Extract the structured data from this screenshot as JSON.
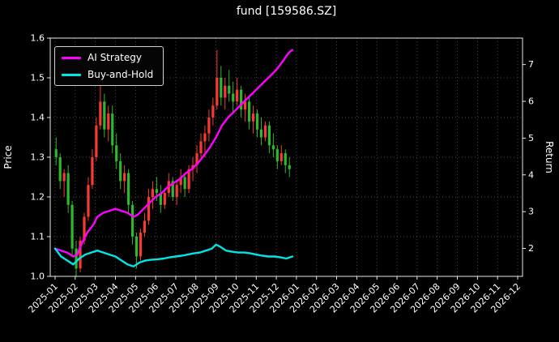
{
  "title": "fund [159586.SZ]",
  "chart_data": {
    "type": "candlestick+line",
    "title": "fund [159586.SZ]",
    "background": "#000000",
    "text_color": "#ffffff",
    "grid": {
      "on": true,
      "color": "#888888",
      "style": "dotted"
    },
    "x_axis": {
      "tick_labels": [
        "2025-01",
        "2025-02",
        "2025-03",
        "2025-04",
        "2025-05",
        "2025-06",
        "2025-07",
        "2025-08",
        "2025-09",
        "2025-10",
        "2025-11",
        "2025-12",
        "2026-01",
        "2026-02",
        "2026-03",
        "2026-04",
        "2026-05",
        "2026-06",
        "2026-07",
        "2026-08",
        "2026-09",
        "2026-10",
        "2026-11",
        "2026-12"
      ],
      "range_months": 24,
      "data_span_months": 12
    },
    "y_left": {
      "label": "Price",
      "ticks": [
        1.0,
        1.1,
        1.2,
        1.3,
        1.4,
        1.5,
        1.6
      ],
      "range": [
        1.0,
        1.6
      ]
    },
    "y_right": {
      "label": "Return",
      "ticks": [
        2,
        3,
        4,
        5,
        6,
        7
      ],
      "range": [
        1.24,
        7.72
      ]
    },
    "legend": {
      "position": "upper-left"
    },
    "candles": {
      "up_color": "#f93a34",
      "down_color": "#2eb82e",
      "ohlc": [
        [
          0.05,
          1.32,
          1.35,
          1.28,
          1.3
        ],
        [
          0.25,
          1.3,
          1.31,
          1.22,
          1.24
        ],
        [
          0.45,
          1.24,
          1.27,
          1.2,
          1.26
        ],
        [
          0.65,
          1.26,
          1.28,
          1.16,
          1.18
        ],
        [
          0.85,
          1.18,
          1.19,
          1.05,
          1.07
        ],
        [
          1.05,
          1.07,
          1.09,
          1.0,
          1.02
        ],
        [
          1.25,
          1.02,
          1.1,
          1.01,
          1.09
        ],
        [
          1.45,
          1.09,
          1.16,
          1.08,
          1.15
        ],
        [
          1.65,
          1.15,
          1.25,
          1.14,
          1.23
        ],
        [
          1.85,
          1.23,
          1.32,
          1.22,
          1.3
        ],
        [
          2.05,
          1.3,
          1.4,
          1.29,
          1.38
        ],
        [
          2.25,
          1.38,
          1.48,
          1.37,
          1.44
        ],
        [
          2.45,
          1.44,
          1.46,
          1.35,
          1.37
        ],
        [
          2.65,
          1.37,
          1.43,
          1.34,
          1.41
        ],
        [
          2.85,
          1.41,
          1.43,
          1.31,
          1.33
        ],
        [
          3.05,
          1.33,
          1.36,
          1.27,
          1.29
        ],
        [
          3.25,
          1.29,
          1.31,
          1.22,
          1.24
        ],
        [
          3.45,
          1.24,
          1.28,
          1.21,
          1.26
        ],
        [
          3.65,
          1.26,
          1.27,
          1.16,
          1.18
        ],
        [
          3.85,
          1.18,
          1.19,
          1.08,
          1.1
        ],
        [
          4.05,
          1.1,
          1.11,
          1.02,
          1.05
        ],
        [
          4.25,
          1.05,
          1.12,
          1.04,
          1.11
        ],
        [
          4.45,
          1.11,
          1.16,
          1.1,
          1.14
        ],
        [
          4.65,
          1.14,
          1.22,
          1.13,
          1.2
        ],
        [
          4.85,
          1.2,
          1.24,
          1.17,
          1.22
        ],
        [
          5.05,
          1.22,
          1.25,
          1.19,
          1.21
        ],
        [
          5.25,
          1.21,
          1.23,
          1.16,
          1.18
        ],
        [
          5.45,
          1.18,
          1.22,
          1.17,
          1.21
        ],
        [
          5.65,
          1.21,
          1.26,
          1.2,
          1.24
        ],
        [
          5.85,
          1.24,
          1.25,
          1.19,
          1.2
        ],
        [
          6.05,
          1.2,
          1.24,
          1.18,
          1.23
        ],
        [
          6.25,
          1.23,
          1.27,
          1.21,
          1.25
        ],
        [
          6.45,
          1.25,
          1.26,
          1.2,
          1.22
        ],
        [
          6.65,
          1.22,
          1.28,
          1.21,
          1.27
        ],
        [
          6.85,
          1.27,
          1.3,
          1.24,
          1.28
        ],
        [
          7.05,
          1.28,
          1.33,
          1.26,
          1.31
        ],
        [
          7.25,
          1.31,
          1.36,
          1.3,
          1.34
        ],
        [
          7.45,
          1.34,
          1.38,
          1.3,
          1.36
        ],
        [
          7.65,
          1.36,
          1.42,
          1.34,
          1.4
        ],
        [
          7.85,
          1.4,
          1.45,
          1.38,
          1.43
        ],
        [
          8.05,
          1.43,
          1.57,
          1.42,
          1.5
        ],
        [
          8.25,
          1.5,
          1.53,
          1.43,
          1.45
        ],
        [
          8.45,
          1.45,
          1.5,
          1.42,
          1.48
        ],
        [
          8.65,
          1.48,
          1.52,
          1.44,
          1.46
        ],
        [
          8.85,
          1.46,
          1.49,
          1.41,
          1.44
        ],
        [
          9.05,
          1.44,
          1.5,
          1.43,
          1.47
        ],
        [
          9.25,
          1.47,
          1.48,
          1.4,
          1.42
        ],
        [
          9.45,
          1.42,
          1.46,
          1.39,
          1.44
        ],
        [
          9.65,
          1.44,
          1.45,
          1.37,
          1.39
        ],
        [
          9.85,
          1.39,
          1.43,
          1.36,
          1.41
        ],
        [
          10.05,
          1.41,
          1.42,
          1.35,
          1.37
        ],
        [
          10.25,
          1.37,
          1.4,
          1.33,
          1.35
        ],
        [
          10.45,
          1.35,
          1.39,
          1.34,
          1.38
        ],
        [
          10.65,
          1.38,
          1.39,
          1.31,
          1.33
        ],
        [
          10.85,
          1.33,
          1.36,
          1.3,
          1.32
        ],
        [
          11.05,
          1.32,
          1.33,
          1.27,
          1.29
        ],
        [
          11.25,
          1.29,
          1.33,
          1.28,
          1.31
        ],
        [
          11.45,
          1.31,
          1.32,
          1.26,
          1.28
        ],
        [
          11.65,
          1.28,
          1.3,
          1.25,
          1.27
        ]
      ]
    },
    "series": [
      {
        "name": "AI Strategy",
        "color": "#ff00ff",
        "axis": "left",
        "points": [
          [
            0,
            1.07
          ],
          [
            0.3,
            1.065
          ],
          [
            0.6,
            1.06
          ],
          [
            0.9,
            1.05
          ],
          [
            1.1,
            1.055
          ],
          [
            1.3,
            1.08
          ],
          [
            1.6,
            1.11
          ],
          [
            1.9,
            1.13
          ],
          [
            2.1,
            1.15
          ],
          [
            2.4,
            1.16
          ],
          [
            2.7,
            1.165
          ],
          [
            3.0,
            1.17
          ],
          [
            3.3,
            1.165
          ],
          [
            3.6,
            1.16
          ],
          [
            3.9,
            1.15
          ],
          [
            4.1,
            1.155
          ],
          [
            4.4,
            1.17
          ],
          [
            4.7,
            1.185
          ],
          [
            5.0,
            1.2
          ],
          [
            5.3,
            1.21
          ],
          [
            5.6,
            1.225
          ],
          [
            5.9,
            1.235
          ],
          [
            6.2,
            1.245
          ],
          [
            6.5,
            1.26
          ],
          [
            6.8,
            1.27
          ],
          [
            7.1,
            1.285
          ],
          [
            7.4,
            1.305
          ],
          [
            7.7,
            1.325
          ],
          [
            8.0,
            1.35
          ],
          [
            8.3,
            1.38
          ],
          [
            8.6,
            1.4
          ],
          [
            8.9,
            1.415
          ],
          [
            9.2,
            1.43
          ],
          [
            9.5,
            1.445
          ],
          [
            9.8,
            1.46
          ],
          [
            10.1,
            1.475
          ],
          [
            10.4,
            1.49
          ],
          [
            10.7,
            1.505
          ],
          [
            11.0,
            1.52
          ],
          [
            11.3,
            1.54
          ],
          [
            11.5,
            1.555
          ],
          [
            11.65,
            1.565
          ],
          [
            11.8,
            1.57
          ]
        ]
      },
      {
        "name": "Buy-and-Hold",
        "color": "#00e5e5",
        "axis": "left",
        "points": [
          [
            0,
            1.07
          ],
          [
            0.3,
            1.05
          ],
          [
            0.6,
            1.04
          ],
          [
            0.9,
            1.03
          ],
          [
            1.2,
            1.045
          ],
          [
            1.5,
            1.055
          ],
          [
            1.8,
            1.06
          ],
          [
            2.1,
            1.065
          ],
          [
            2.4,
            1.06
          ],
          [
            2.7,
            1.055
          ],
          [
            3.0,
            1.05
          ],
          [
            3.3,
            1.04
          ],
          [
            3.6,
            1.03
          ],
          [
            3.9,
            1.025
          ],
          [
            4.2,
            1.035
          ],
          [
            4.5,
            1.04
          ],
          [
            4.8,
            1.042
          ],
          [
            5.1,
            1.043
          ],
          [
            5.4,
            1.045
          ],
          [
            5.7,
            1.048
          ],
          [
            6.0,
            1.05
          ],
          [
            6.3,
            1.052
          ],
          [
            6.6,
            1.055
          ],
          [
            6.9,
            1.058
          ],
          [
            7.2,
            1.06
          ],
          [
            7.5,
            1.065
          ],
          [
            7.8,
            1.07
          ],
          [
            8.0,
            1.08
          ],
          [
            8.2,
            1.075
          ],
          [
            8.5,
            1.065
          ],
          [
            8.8,
            1.062
          ],
          [
            9.1,
            1.06
          ],
          [
            9.4,
            1.06
          ],
          [
            9.7,
            1.058
          ],
          [
            10.0,
            1.055
          ],
          [
            10.3,
            1.052
          ],
          [
            10.6,
            1.05
          ],
          [
            10.9,
            1.05
          ],
          [
            11.2,
            1.048
          ],
          [
            11.5,
            1.045
          ],
          [
            11.8,
            1.05
          ]
        ]
      }
    ]
  }
}
